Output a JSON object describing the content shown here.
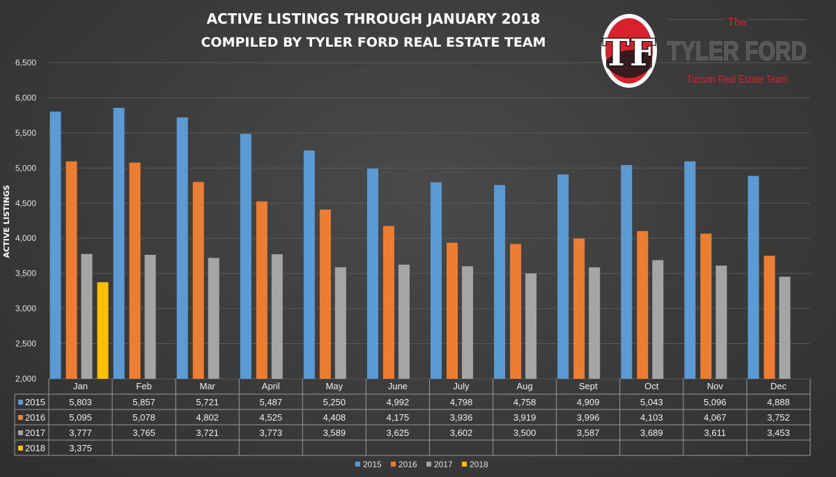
{
  "title_line1": "ACTIVE LISTINGS THROUGH JANUARY 2018",
  "title_line2": "COMPILED BY TYLER FORD REAL ESTATE TEAM",
  "logo": {
    "monogram": "TF",
    "the": "The",
    "name": "TYLER FORD",
    "tagline": "Tucson Real Estate Team"
  },
  "colors": {
    "2015": "#5b9bd5",
    "2016": "#ed7d31",
    "2017": "#a5a5a5",
    "2018": "#ffc000",
    "logo_red": "#d8222b"
  },
  "chart_data": {
    "type": "bar",
    "title": "ACTIVE LISTINGS THROUGH JANUARY 2018",
    "subtitle": "COMPILED BY TYLER FORD REAL ESTATE TEAM",
    "ylabel": "ACTIVE LISTINGS",
    "xlabel": "",
    "ylim": [
      2000,
      6500
    ],
    "yticks": [
      "2,000",
      "2,500",
      "3,000",
      "3,500",
      "4,000",
      "4,500",
      "5,000",
      "5,500",
      "6,000",
      "6,500"
    ],
    "grid": true,
    "legend": "bottom",
    "categories": [
      "Jan",
      "Feb",
      "Mar",
      "April",
      "May",
      "June",
      "July",
      "Aug",
      "Sept",
      "Oct",
      "Nov",
      "Dec"
    ],
    "series": [
      {
        "name": "2015",
        "values": [
          5803,
          5857,
          5721,
          5487,
          5250,
          4992,
          4798,
          4758,
          4909,
          5043,
          5096,
          4888
        ],
        "labels": [
          "5,803",
          "5,857",
          "5,721",
          "5,487",
          "5,250",
          "4,992",
          "4,798",
          "4,758",
          "4,909",
          "5,043",
          "5,096",
          "4,888"
        ]
      },
      {
        "name": "2016",
        "values": [
          5095,
          5078,
          4802,
          4525,
          4408,
          4175,
          3936,
          3919,
          3996,
          4103,
          4067,
          3752
        ],
        "labels": [
          "5,095",
          "5,078",
          "4,802",
          "4,525",
          "4,408",
          "4,175",
          "3,936",
          "3,919",
          "3,996",
          "4,103",
          "4,067",
          "3,752"
        ]
      },
      {
        "name": "2017",
        "values": [
          3777,
          3765,
          3721,
          3773,
          3589,
          3625,
          3602,
          3500,
          3587,
          3689,
          3611,
          3453
        ],
        "labels": [
          "3,777",
          "3,765",
          "3,721",
          "3,773",
          "3,589",
          "3,625",
          "3,602",
          "3,500",
          "3,587",
          "3,689",
          "3,611",
          "3,453"
        ]
      },
      {
        "name": "2018",
        "values": [
          3375,
          null,
          null,
          null,
          null,
          null,
          null,
          null,
          null,
          null,
          null,
          null
        ],
        "labels": [
          "3,375",
          "",
          "",
          "",
          "",
          "",
          "",
          "",
          "",
          "",
          "",
          ""
        ]
      }
    ]
  }
}
